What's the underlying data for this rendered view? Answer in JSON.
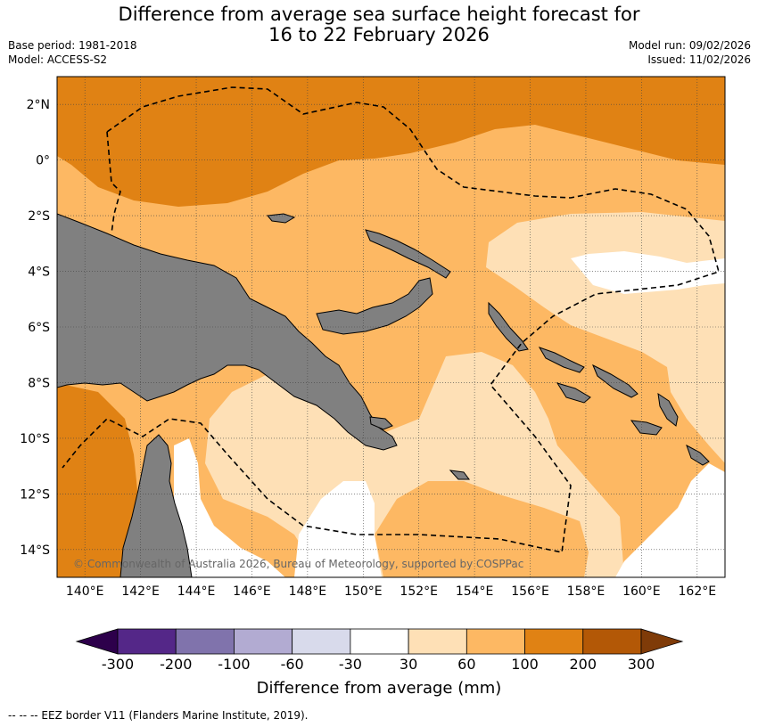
{
  "title_line1": "Difference from average sea surface height forecast for",
  "title_line2": "16 to 22 February 2026",
  "base_period": "Base period: 1981-2018",
  "model": "Model: ACCESS-S2",
  "model_run": "Model run: 09/02/2026",
  "issued": "Issued: 11/02/2026",
  "map": {
    "lon_labels": [
      "140°E",
      "142°E",
      "144°E",
      "146°E",
      "148°E",
      "150°E",
      "152°E",
      "154°E",
      "156°E",
      "158°E",
      "160°E",
      "162°E"
    ],
    "lat_labels": [
      "2°N",
      "0°",
      "2°S",
      "4°S",
      "6°S",
      "8°S",
      "10°S",
      "12°S",
      "14°S"
    ],
    "lon_range": [
      139,
      163
    ],
    "lat_range": [
      -15,
      3
    ],
    "copyright": "© Commonwealth of Australia 2026, Bureau of Meteorology, supported by COSPPac"
  },
  "colorbar": {
    "label": "Difference from average (mm)",
    "tick_labels": [
      "-300",
      "-200",
      "-100",
      "-60",
      "-30",
      "30",
      "60",
      "100",
      "200",
      "300"
    ],
    "colors": [
      "#2d004b",
      "#542788",
      "#8073ac",
      "#b2abd2",
      "#d8daeb",
      "#ffffff",
      "#fee0b6",
      "#fdb863",
      "#e08214",
      "#b35806",
      "#7f3b08"
    ]
  },
  "footer": "--  --  -- EEZ border V11 (Flanders Marine Institute, 2019).",
  "colors": {
    "land": "#808080",
    "eez_line": "#000000"
  }
}
